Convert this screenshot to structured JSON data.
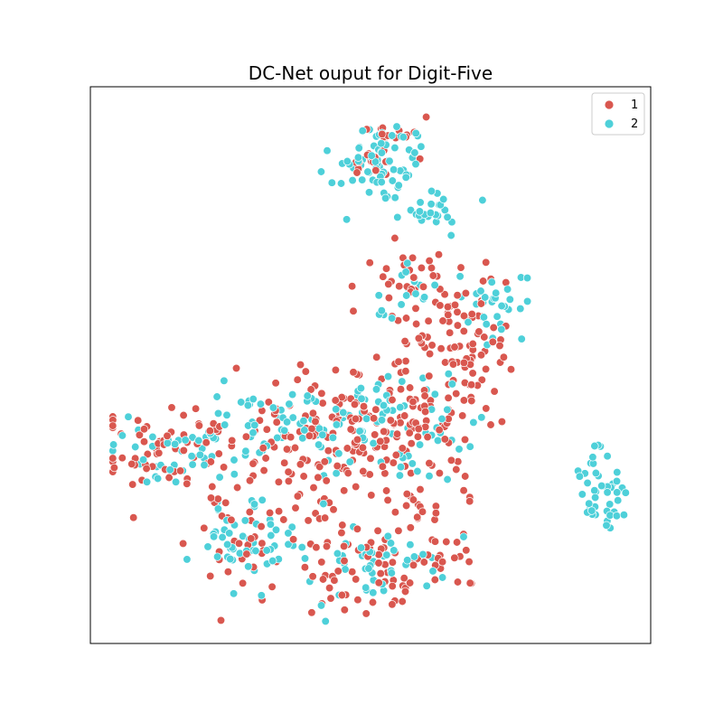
{
  "chart_data": {
    "type": "scatter",
    "title": "DC-Net ouput for Digit-Five",
    "xlabel": "",
    "ylabel": "",
    "xlim": [
      0,
      100
    ],
    "ylim": [
      0,
      100
    ],
    "grid": false,
    "axis_ticks": false,
    "legend": {
      "placement": "top-right"
    },
    "series": [
      {
        "name": "1",
        "color": "#d9574f",
        "clusters": [
          {
            "cx": 53,
            "cy": 89,
            "sx": 3.0,
            "sy": 2.8,
            "n": 30,
            "seed": 11
          },
          {
            "cx": 60,
            "cy": 62,
            "sx": 5.0,
            "sy": 5.5,
            "n": 55,
            "seed": 12
          },
          {
            "cx": 67,
            "cy": 51,
            "sx": 4.5,
            "sy": 4.5,
            "n": 60,
            "seed": 13
          },
          {
            "cx": 55,
            "cy": 40,
            "sx": 7.0,
            "sy": 7.0,
            "n": 130,
            "seed": 14
          },
          {
            "cx": 38,
            "cy": 36,
            "sx": 8.0,
            "sy": 6.0,
            "n": 110,
            "seed": 15
          },
          {
            "cx": 13,
            "cy": 35,
            "sx": 5.5,
            "sy": 4.0,
            "n": 55,
            "seed": 16
          },
          {
            "cx": 27,
            "cy": 18,
            "sx": 5.0,
            "sy": 5.0,
            "n": 40,
            "seed": 17
          },
          {
            "cx": 57,
            "cy": 16,
            "sx": 6.0,
            "sy": 5.0,
            "n": 60,
            "seed": 18
          },
          {
            "cx": 45,
            "cy": 13,
            "sx": 4.5,
            "sy": 4.5,
            "n": 35,
            "seed": 19
          }
        ]
      },
      {
        "name": "2",
        "color": "#4ed0d9",
        "clusters": [
          {
            "cx": 52,
            "cy": 86,
            "sx": 3.5,
            "sy": 3.5,
            "n": 75,
            "seed": 21
          },
          {
            "cx": 60,
            "cy": 77,
            "sx": 3.5,
            "sy": 2.0,
            "n": 25,
            "seed": 22
          },
          {
            "cx": 74,
            "cy": 60,
            "sx": 3.0,
            "sy": 2.5,
            "n": 30,
            "seed": 23
          },
          {
            "cx": 58,
            "cy": 63,
            "sx": 4.0,
            "sy": 2.5,
            "n": 20,
            "seed": 24
          },
          {
            "cx": 91,
            "cy": 28,
            "sx": 2.0,
            "sy": 4.0,
            "n": 45,
            "seed": 25
          },
          {
            "cx": 16,
            "cy": 35,
            "sx": 6.0,
            "sy": 3.0,
            "n": 45,
            "seed": 26
          },
          {
            "cx": 35,
            "cy": 40,
            "sx": 7.0,
            "sy": 4.0,
            "n": 55,
            "seed": 27
          },
          {
            "cx": 55,
            "cy": 38,
            "sx": 7.0,
            "sy": 6.0,
            "n": 65,
            "seed": 28
          },
          {
            "cx": 29,
            "cy": 18,
            "sx": 4.5,
            "sy": 4.0,
            "n": 55,
            "seed": 29
          },
          {
            "cx": 51,
            "cy": 15,
            "sx": 5.0,
            "sy": 4.0,
            "n": 45,
            "seed": 30
          }
        ]
      }
    ]
  }
}
